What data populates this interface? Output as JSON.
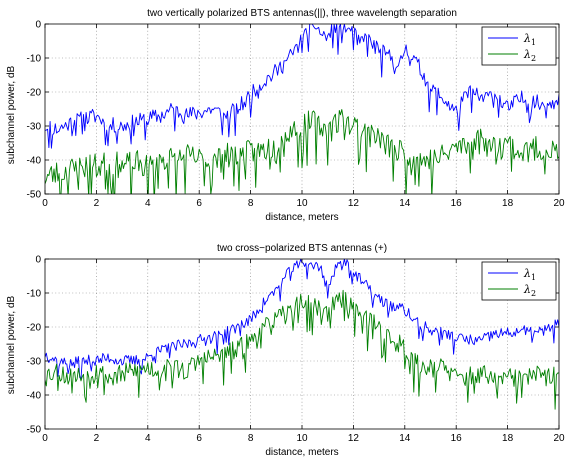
{
  "chart_data": [
    {
      "type": "line",
      "title": "two vertically polarized BTS antennas(||), three wavelength separation",
      "xlabel": "distance, meters",
      "ylabel": "subchannel power, dB",
      "xlim": [
        0,
        20
      ],
      "ylim": [
        -50,
        0
      ],
      "xticks": [
        "0",
        "2",
        "4",
        "6",
        "8",
        "10",
        "12",
        "14",
        "16",
        "18",
        "20"
      ],
      "yticks": [
        "0",
        "-10",
        "-20",
        "-30",
        "-40",
        "-50"
      ],
      "grid": true,
      "legend_position": "top-right",
      "legend": [
        {
          "symbol": "λ",
          "sub": "1",
          "color": "#0000ff"
        },
        {
          "symbol": "λ",
          "sub": "2",
          "color": "#007f00"
        }
      ],
      "series": [
        {
          "color": "#0000ff",
          "x": [
            0,
            0.5,
            1,
            1.5,
            2,
            2.5,
            3,
            3.5,
            4,
            4.5,
            5,
            5.5,
            6,
            6.5,
            7,
            7.5,
            8,
            8.5,
            9,
            9.5,
            10,
            10.25,
            10.5,
            10.75,
            11,
            11.25,
            11.5,
            11.75,
            12,
            12.25,
            12.5,
            13,
            13.5,
            13.75,
            14,
            14.5,
            15,
            15.5,
            16,
            16.5,
            17,
            17.5,
            18,
            18.5,
            19,
            19.5,
            20
          ],
          "values": [
            -30,
            -31,
            -29,
            -28,
            -27,
            -30,
            -30,
            -29,
            -28,
            -27,
            -25,
            -27,
            -26,
            -25,
            -27,
            -25,
            -21,
            -17,
            -14,
            -10,
            -5,
            -2,
            0,
            -3,
            -4,
            -1,
            -2,
            -1,
            -3,
            -6,
            -4,
            -8,
            -10,
            -14,
            -7,
            -12,
            -19,
            -22,
            -26,
            -20,
            -22,
            -21,
            -25,
            -22,
            -23,
            -24,
            -21
          ],
          "noise": 2.5,
          "seed": 11
        },
        {
          "color": "#007f00",
          "x": [
            0,
            0.5,
            1,
            1.5,
            2,
            2.5,
            3,
            3.5,
            4,
            4.5,
            5,
            5.5,
            6,
            6.5,
            7,
            7.5,
            8,
            8.5,
            9,
            9.5,
            10,
            10.5,
            11,
            11.5,
            12,
            12.5,
            13,
            13.5,
            14,
            14.5,
            15,
            15.5,
            16,
            16.5,
            17,
            17.5,
            18,
            18.5,
            19,
            19.5,
            20
          ],
          "values": [
            -45,
            -44,
            -43,
            -42,
            -42,
            -41,
            -42,
            -41,
            -42,
            -40,
            -40,
            -39,
            -40,
            -41,
            -39,
            -39,
            -38,
            -37,
            -36,
            -32,
            -30,
            -29,
            -31,
            -28,
            -30,
            -31,
            -34,
            -37,
            -38,
            -40,
            -40,
            -39,
            -36,
            -36,
            -34,
            -37,
            -35,
            -38,
            -37,
            -37,
            -38
          ],
          "noise": 4,
          "seed": 23
        }
      ]
    },
    {
      "type": "line",
      "title": "two cross−polarized BTS antennas (+)",
      "xlabel": "distance, meters",
      "ylabel": "subchannel power, dB",
      "xlim": [
        0,
        20
      ],
      "ylim": [
        -50,
        0
      ],
      "xticks": [
        "0",
        "2",
        "4",
        "6",
        "8",
        "10",
        "12",
        "14",
        "16",
        "18",
        "20"
      ],
      "yticks": [
        "0",
        "-10",
        "-20",
        "-30",
        "-40",
        "-50"
      ],
      "grid": true,
      "legend_position": "top-right",
      "legend": [
        {
          "symbol": "λ",
          "sub": "1",
          "color": "#0000ff"
        },
        {
          "symbol": "λ",
          "sub": "2",
          "color": "#007f00"
        }
      ],
      "series": [
        {
          "color": "#0000ff",
          "x": [
            0,
            0.5,
            1,
            1.5,
            2,
            2.5,
            3,
            3.5,
            4,
            4.5,
            5,
            5.5,
            6,
            6.5,
            7,
            7.5,
            8,
            8.5,
            9,
            9.5,
            10,
            10.25,
            10.5,
            10.75,
            11,
            11.25,
            11.5,
            11.75,
            12,
            12.5,
            13,
            13.5,
            14,
            14.5,
            15,
            15.5,
            16,
            16.5,
            17,
            17.5,
            18,
            18.5,
            19,
            19.5,
            20
          ],
          "values": [
            -28,
            -30,
            -31,
            -30,
            -30,
            -29,
            -30,
            -30,
            -29,
            -27,
            -26,
            -25,
            -24,
            -23,
            -22,
            -20,
            -18,
            -13,
            -9,
            -4,
            -1,
            -1,
            -2,
            -3,
            -9,
            -4,
            -1,
            -1,
            -4,
            -8,
            -12,
            -14,
            -15,
            -19,
            -21,
            -22,
            -23,
            -24,
            -24,
            -22,
            -22,
            -21,
            -22,
            -21,
            -19
          ],
          "noise": 1.8,
          "seed": 37
        },
        {
          "color": "#007f00",
          "x": [
            0,
            0.5,
            1,
            1.5,
            2,
            2.5,
            3,
            3.5,
            4,
            4.5,
            5,
            5.5,
            6,
            6.5,
            7,
            7.5,
            8,
            8.5,
            9,
            9.5,
            10,
            10.5,
            11,
            11.5,
            12,
            12.5,
            13,
            13.5,
            14,
            14.5,
            15,
            15.5,
            16,
            16.5,
            17,
            17.5,
            18,
            18.5,
            19,
            19.5,
            20
          ],
          "values": [
            -34,
            -33,
            -35,
            -34,
            -33,
            -35,
            -34,
            -33,
            -32,
            -33,
            -32,
            -33,
            -30,
            -29,
            -28,
            -27,
            -24,
            -21,
            -18,
            -16,
            -13,
            -14,
            -16,
            -12,
            -14,
            -18,
            -20,
            -24,
            -26,
            -31,
            -32,
            -32,
            -35,
            -35,
            -34,
            -36,
            -35,
            -36,
            -34,
            -35,
            -35
          ],
          "noise": 3.2,
          "seed": 53
        }
      ]
    }
  ]
}
